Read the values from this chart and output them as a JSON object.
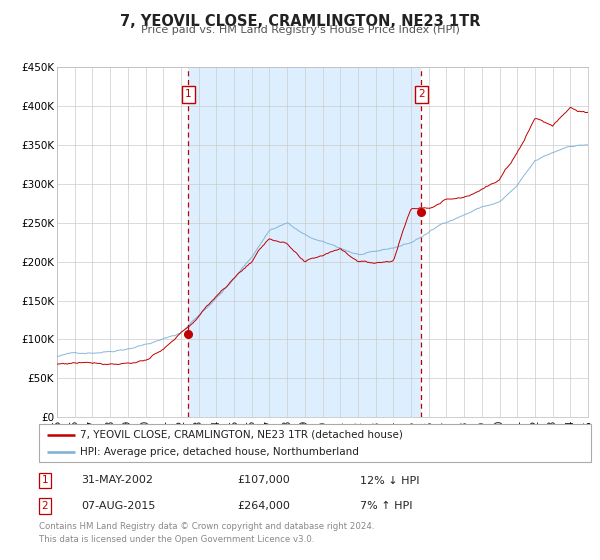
{
  "title": "7, YEOVIL CLOSE, CRAMLINGTON, NE23 1TR",
  "subtitle": "Price paid vs. HM Land Registry's House Price Index (HPI)",
  "legend_line1": "7, YEOVIL CLOSE, CRAMLINGTON, NE23 1TR (detached house)",
  "legend_line2": "HPI: Average price, detached house, Northumberland",
  "annotation1_label": "1",
  "annotation1_date": "31-MAY-2002",
  "annotation1_price": "£107,000",
  "annotation1_hpi": "12% ↓ HPI",
  "annotation2_label": "2",
  "annotation2_date": "07-AUG-2015",
  "annotation2_price": "£264,000",
  "annotation2_hpi": "7% ↑ HPI",
  "footer_line1": "Contains HM Land Registry data © Crown copyright and database right 2024.",
  "footer_line2": "This data is licensed under the Open Government Licence v3.0.",
  "hpi_color": "#7bafd4",
  "price_color": "#c00000",
  "dot_color": "#c00000",
  "vline_color": "#c00000",
  "shade_color": "#ddeeff",
  "background_color": "#ffffff",
  "grid_color": "#cccccc",
  "ylim_min": 0,
  "ylim_max": 450000,
  "year_start": 1995,
  "year_end": 2025,
  "vline1_year": 2002.42,
  "vline2_year": 2015.59,
  "dot1_year": 2002.42,
  "dot1_value": 107000,
  "dot2_year": 2015.59,
  "dot2_value": 264000
}
